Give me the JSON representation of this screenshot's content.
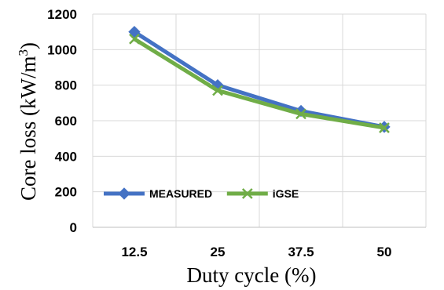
{
  "chart_data": {
    "type": "line",
    "categories": [
      "12.5",
      "25",
      "37.5",
      "50"
    ],
    "series": [
      {
        "name": "MEASURED",
        "values": [
          1100,
          800,
          655,
          565
        ],
        "color": "#4472c4",
        "marker": "diamond"
      },
      {
        "name": "iGSE",
        "values": [
          1060,
          770,
          638,
          560
        ],
        "color": "#70ad47",
        "marker": "x"
      }
    ],
    "xlabel": "Duty cycle (%)",
    "ylabel": {
      "text": "Core loss (kW/m",
      "sup": "3",
      "tail": ")"
    },
    "ylim": [
      0,
      1200
    ],
    "yticks": [
      0,
      200,
      400,
      600,
      800,
      1000,
      1200
    ],
    "grid": true,
    "legend": "inside-left"
  }
}
